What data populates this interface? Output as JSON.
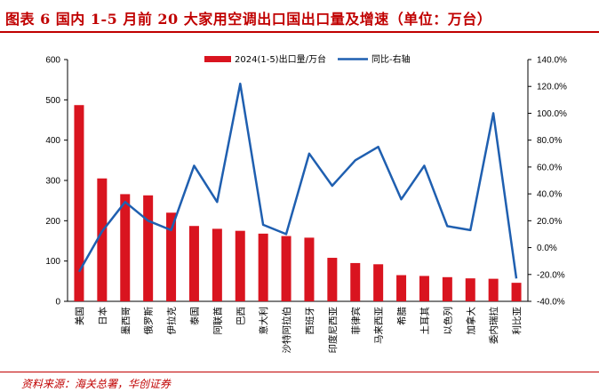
{
  "title": "图表 6   国内 1-5 月前 20 大家用空调出口国出口量及增速（单位：万台）",
  "source": "资料来源：海关总署，华创证券",
  "colors": {
    "bar": "#d9141f",
    "line": "#1f5fb0",
    "accent": "#c00000"
  },
  "chart_data": {
    "type": "bar",
    "categories": [
      "美国",
      "日本",
      "墨西哥",
      "俄罗斯",
      "伊拉克",
      "泰国",
      "阿联酋",
      "巴西",
      "意大利",
      "沙特阿拉伯",
      "西班牙",
      "印度尼西亚",
      "菲律宾",
      "马来西亚",
      "希腊",
      "土耳其",
      "以色列",
      "加拿大",
      "委内瑞拉",
      "利比亚"
    ],
    "series": [
      {
        "name": "2024(1-5)出口量/万台",
        "type": "bar",
        "axis": "left",
        "values": [
          487,
          305,
          266,
          263,
          220,
          187,
          180,
          175,
          168,
          162,
          158,
          108,
          95,
          92,
          65,
          63,
          60,
          57,
          56,
          46
        ]
      },
      {
        "name": "同比-右轴",
        "type": "line",
        "axis": "right",
        "values": [
          -18,
          12,
          34,
          20,
          13,
          61,
          34,
          122,
          17,
          10,
          70,
          46,
          65,
          75,
          36,
          61,
          16,
          13,
          100,
          -23
        ]
      }
    ],
    "y_left": {
      "min": 0,
      "max": 600,
      "ticks": [
        "0",
        "100",
        "200",
        "300",
        "400",
        "500",
        "600"
      ]
    },
    "y_right": {
      "min": -40,
      "max": 140,
      "ticks": [
        "-40.0%",
        "-20.0%",
        "0.0%",
        "20.0%",
        "40.0%",
        "60.0%",
        "80.0%",
        "100.0%",
        "120.0%",
        "140.0%"
      ]
    },
    "grid": false,
    "legend_position": "top-center"
  }
}
